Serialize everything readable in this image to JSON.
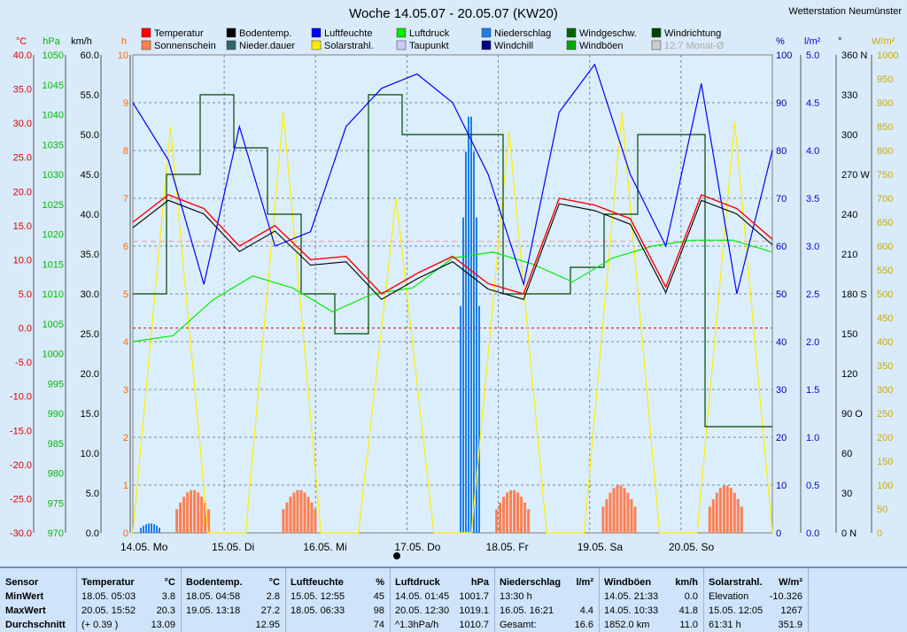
{
  "chart_data": {
    "type": "line",
    "title": "Woche 14.05.07 - 20.05.07 (KW20)",
    "station": "Wetterstation Neumünster",
    "day_labels": [
      "14.05. Mo",
      "15.05. Di",
      "16.05. Mi",
      "17.05. Do",
      "18.05. Fr",
      "19.05. Sa",
      "20.05. So"
    ],
    "left_axes": {
      "temp": {
        "unit": "°C",
        "ticks": [
          "40.0",
          "35.0",
          "30.0",
          "25.0",
          "20.0",
          "15.0",
          "10.0",
          "5.0",
          "0.0",
          "-5.0",
          "-10.0",
          "-15.0",
          "-20.0",
          "-25.0",
          "-30.0"
        ],
        "color": "#dd0000"
      },
      "pressure": {
        "unit": "hPa",
        "ticks": [
          "1050",
          "1045",
          "1040",
          "1035",
          "1030",
          "1025",
          "1020",
          "1015",
          "1010",
          "1005",
          "1000",
          "995",
          "990",
          "985",
          "980",
          "975",
          "970"
        ],
        "color": "#00bb00"
      },
      "wind": {
        "unit": "km/h",
        "ticks": [
          "60.0",
          "55.0",
          "50.0",
          "45.0",
          "40.0",
          "35.0",
          "30.0",
          "25.0",
          "20.0",
          "15.0",
          "10.0",
          "5.0",
          "0.0"
        ],
        "color": "#000000"
      },
      "hours": {
        "unit": "h",
        "ticks": [
          "10",
          "9",
          "8",
          "7",
          "6",
          "5",
          "4",
          "3",
          "2",
          "1",
          "0"
        ],
        "color": "#ff6600"
      }
    },
    "right_axes": {
      "humidity": {
        "unit": "%",
        "ticks": [
          "100",
          "90",
          "80",
          "70",
          "60",
          "50",
          "40",
          "30",
          "20",
          "10",
          "0"
        ],
        "color": "#0000aa"
      },
      "rain": {
        "unit": "l/m²",
        "ticks": [
          "5.0",
          "4.5",
          "4.0",
          "3.5",
          "3.0",
          "2.5",
          "2.0",
          "1.5",
          "1.0",
          "0.5",
          "0.0"
        ],
        "color": "#0000ee"
      },
      "direction": {
        "unit": "°",
        "ticks": [
          "360 N",
          "330",
          "300",
          "270 W",
          "240",
          "210",
          "180 S",
          "150",
          "120",
          "90 O",
          "60",
          "30",
          "0 N"
        ],
        "color": "#000000"
      },
      "solar": {
        "unit": "W/m²",
        "ticks": [
          "1000",
          "950",
          "900",
          "850",
          "800",
          "750",
          "700",
          "650",
          "600",
          "550",
          "500",
          "450",
          "400",
          "350",
          "300",
          "250",
          "200",
          "150",
          "100",
          "50",
          "0"
        ],
        "color": "#ccaa00"
      }
    },
    "legend": [
      {
        "name": "Temperatur",
        "color": "#ff0000"
      },
      {
        "name": "Sonnenschein",
        "color": "#ff7f50"
      },
      {
        "name": "Bodentemp.",
        "color": "#000000"
      },
      {
        "name": "Nieder.dauer",
        "color": "#336666"
      },
      {
        "name": "Luftfeuchte",
        "color": "#0000ff"
      },
      {
        "name": "Solarstrahl.",
        "color": "#ffee00"
      },
      {
        "name": "Luftdruck",
        "color": "#00ee00"
      },
      {
        "name": "Taupunkt",
        "color": "#ccccff"
      },
      {
        "name": "Niederschlag",
        "color": "#1e7ee8"
      },
      {
        "name": "Windchill",
        "color": "#000088"
      },
      {
        "name": "Windgeschw.",
        "color": "#006600"
      },
      {
        "name": "Windböen",
        "color": "#00aa00"
      },
      {
        "name": "Windrichtung",
        "color": "#004400"
      },
      {
        "name": "12.7 Monat-Ø",
        "color": "#cccccc"
      }
    ],
    "series": [
      {
        "name": "Temperatur",
        "values": [
          15.5,
          19.5,
          17.5,
          12,
          15,
          10,
          10.5,
          5,
          8,
          10.5,
          6.5,
          5,
          19,
          18,
          16,
          6,
          19.5,
          17.5,
          13
        ]
      },
      {
        "name": "Luftfeuchte",
        "values": [
          90,
          78,
          52,
          85,
          60,
          63,
          85,
          93,
          96,
          90,
          75,
          52,
          88,
          98,
          75,
          60,
          94,
          50,
          80
        ]
      },
      {
        "name": "Luftdruck",
        "values": [
          1002,
          1003,
          1009,
          1013,
          1011,
          1007,
          1010,
          1011,
          1016,
          1017,
          1015,
          1012,
          1016,
          1018,
          1019,
          1019,
          1017
        ]
      },
      {
        "name": "Windrichtung",
        "values": [
          180,
          270,
          330,
          290,
          240,
          180,
          150,
          330,
          300,
          300,
          300,
          180,
          180,
          200,
          240,
          300,
          300,
          80,
          80
        ]
      },
      {
        "name": "Solarstrahl.",
        "values": [
          0,
          850,
          0,
          0,
          880,
          0,
          0,
          700,
          0,
          0,
          840,
          0,
          0,
          880,
          0,
          0,
          860,
          0
        ]
      },
      {
        "name": "Sonnenschein",
        "values": [
          0,
          0.9,
          0,
          0,
          0.9,
          0,
          0,
          0,
          0,
          0,
          0.9,
          0,
          0,
          1,
          0,
          0,
          1,
          0
        ]
      },
      {
        "name": "Niederschlag",
        "values": [
          0.1,
          0,
          0,
          0,
          0,
          0,
          0,
          0,
          0,
          4.4,
          0,
          0,
          0,
          0,
          0,
          0,
          0,
          0
        ]
      }
    ],
    "zero_line_temp": 0.0,
    "monthly_avg": 12.7
  },
  "footer": {
    "columns": [
      {
        "head": [
          "Sensor",
          ""
        ],
        "rows": [
          [
            "MinWert",
            ""
          ],
          [
            "MaxWert",
            ""
          ],
          [
            "Durchschnitt",
            ""
          ]
        ]
      },
      {
        "head": [
          "Temperatur",
          "°C"
        ],
        "rows": [
          [
            "18.05. 05:03",
            "3.8"
          ],
          [
            "20.05. 15:52",
            "20.3"
          ],
          [
            "(+ 0.39 )",
            "13.09"
          ]
        ]
      },
      {
        "head": [
          "Bodentemp.",
          "°C"
        ],
        "rows": [
          [
            "18.05. 04:58",
            "2.8"
          ],
          [
            "19.05. 13:18",
            "27.2"
          ],
          [
            "",
            "12.95"
          ]
        ]
      },
      {
        "head": [
          "Luftfeuchte",
          "%"
        ],
        "rows": [
          [
            "15.05. 12:55",
            "45"
          ],
          [
            "18.05. 06:33",
            "98"
          ],
          [
            "",
            "74"
          ]
        ]
      },
      {
        "head": [
          "Luftdruck",
          "hPa"
        ],
        "rows": [
          [
            "14.05. 01:45",
            "1001.7"
          ],
          [
            "20.05. 12:30",
            "1019.1"
          ],
          [
            "^1.3hPa/h",
            "1010.7"
          ]
        ]
      },
      {
        "head": [
          "Niederschlag",
          "l/m²"
        ],
        "rows": [
          [
            "13:30 h",
            ""
          ],
          [
            "16.05. 16:21",
            "4.4"
          ],
          [
            "Gesamt:",
            "16.6"
          ]
        ]
      },
      {
        "head": [
          "Windböen",
          "km/h"
        ],
        "rows": [
          [
            "14.05. 21:33",
            "0.0"
          ],
          [
            "14.05. 10:33",
            "41.8"
          ],
          [
            "1852.0 km",
            "11.0"
          ]
        ]
      },
      {
        "head": [
          "Solarstrahl.",
          "W/m²"
        ],
        "rows": [
          [
            "Elevation",
            "-10.326"
          ],
          [
            "15.05. 12:05",
            "1267"
          ],
          [
            "61:31 h",
            "351.9"
          ]
        ]
      }
    ]
  }
}
